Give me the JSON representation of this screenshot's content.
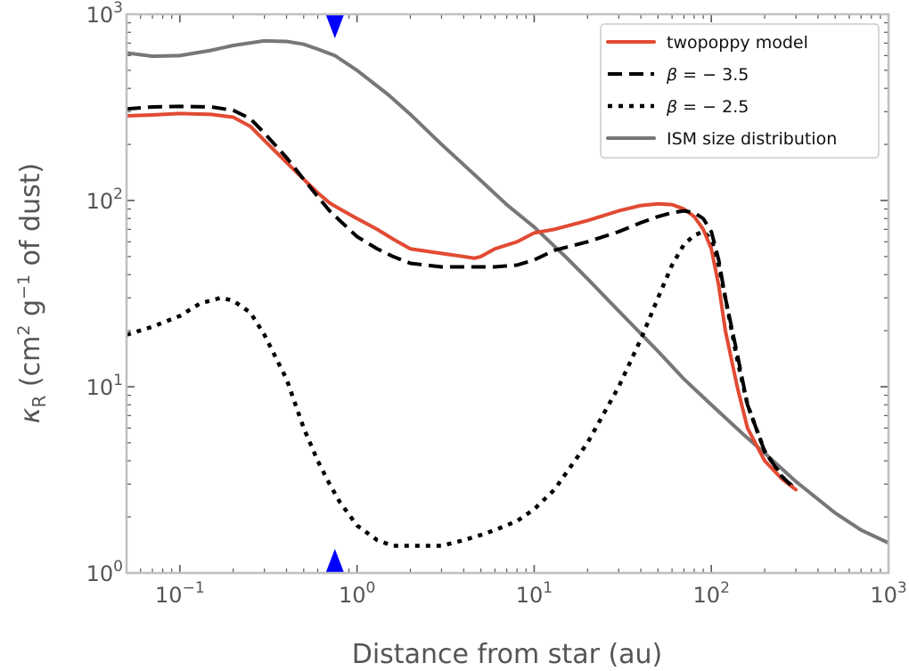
{
  "chart_data": {
    "type": "line",
    "title": "",
    "xlabel": "Distance from star (au)",
    "ylabel": "κR (cm² g⁻¹ of dust)",
    "xscale": "log",
    "yscale": "log",
    "xlim": [
      0.05,
      1000
    ],
    "ylim": [
      1,
      1000
    ],
    "xticks": [
      {
        "value": 0.1,
        "base": "10",
        "exp": "−1"
      },
      {
        "value": 1,
        "base": "10",
        "exp": "0"
      },
      {
        "value": 10,
        "base": "10",
        "exp": "1"
      },
      {
        "value": 100,
        "base": "10",
        "exp": "2"
      },
      {
        "value": 1000,
        "base": "10",
        "exp": "3"
      }
    ],
    "yticks": [
      {
        "value": 1,
        "base": "10",
        "exp": "0"
      },
      {
        "value": 10,
        "base": "10",
        "exp": "1"
      },
      {
        "value": 100,
        "base": "10",
        "exp": "2"
      },
      {
        "value": 1000,
        "base": "10",
        "exp": "3"
      }
    ],
    "ylabel_parts": {
      "kappa": "κ",
      "sub": "R",
      "pre": " (cm",
      "sup1": "2",
      "mid": " g",
      "sup2": "−1",
      "post": " of dust)"
    },
    "legend_position": "top-right",
    "markers": [
      {
        "name": "top-marker",
        "x": 0.75,
        "edge": "top",
        "shape": "triangle-down",
        "color": "#0000ff"
      },
      {
        "name": "bottom-marker",
        "x": 0.75,
        "edge": "bottom",
        "shape": "triangle-up",
        "color": "#0000ff"
      }
    ],
    "series": [
      {
        "name": "twopoppy model",
        "legend_label": "twopoppy model",
        "color": "#e24a33",
        "style": "solid",
        "x": [
          0.05,
          0.07,
          0.1,
          0.15,
          0.2,
          0.25,
          0.3,
          0.4,
          0.5,
          0.6,
          0.7,
          0.8,
          1.0,
          1.3,
          1.6,
          2.0,
          3.0,
          4.0,
          4.6,
          5.0,
          6.0,
          8.0,
          10,
          13,
          20,
          30,
          40,
          50,
          60,
          70,
          80,
          90,
          100,
          110,
          120,
          140,
          160,
          200,
          250,
          300
        ],
        "values": [
          285,
          288,
          293,
          290,
          280,
          250,
          210,
          160,
          130,
          110,
          97,
          90,
          80,
          70,
          62,
          55,
          52,
          50,
          49,
          50,
          55,
          60,
          67,
          70,
          78,
          88,
          94,
          96,
          95,
          90,
          82,
          70,
          55,
          35,
          20,
          10,
          6.0,
          4.0,
          3.2,
          2.8
        ]
      },
      {
        "name": "beta -3.5",
        "legend_label": "= − 3.5",
        "color": "#000000",
        "style": "dashed",
        "x": [
          0.05,
          0.07,
          0.1,
          0.15,
          0.2,
          0.25,
          0.3,
          0.4,
          0.5,
          0.6,
          0.7,
          0.8,
          1.0,
          1.3,
          1.6,
          2.0,
          3.0,
          4.0,
          5.0,
          6.0,
          8.0,
          10,
          13,
          20,
          30,
          40,
          50,
          60,
          70,
          80,
          90,
          100,
          110,
          120,
          140,
          160,
          200,
          250,
          300
        ],
        "values": [
          310,
          318,
          320,
          318,
          305,
          275,
          230,
          170,
          130,
          105,
          88,
          78,
          64,
          55,
          50,
          46,
          44,
          44,
          44,
          44,
          45,
          48,
          54,
          60,
          68,
          76,
          82,
          86,
          88,
          86,
          80,
          68,
          48,
          30,
          15,
          8.0,
          4.5,
          3.3,
          2.8
        ]
      },
      {
        "name": "beta -2.5",
        "legend_label": "= − 2.5",
        "color": "#000000",
        "style": "dotted",
        "x": [
          0.05,
          0.07,
          0.1,
          0.13,
          0.17,
          0.2,
          0.25,
          0.3,
          0.4,
          0.5,
          0.6,
          0.7,
          0.8,
          1.0,
          1.3,
          1.6,
          2.0,
          3.0,
          4.0,
          5.0,
          6.0,
          8.0,
          10,
          13,
          20,
          30,
          40,
          50,
          60,
          70,
          80,
          90,
          100,
          110,
          120,
          140,
          160,
          200,
          250,
          300
        ],
        "values": [
          19,
          21,
          24,
          28,
          30,
          29,
          25,
          19,
          11,
          6.0,
          4.0,
          3.0,
          2.4,
          1.8,
          1.5,
          1.4,
          1.4,
          1.4,
          1.5,
          1.6,
          1.7,
          1.9,
          2.2,
          2.8,
          5.0,
          10,
          18,
          30,
          45,
          58,
          65,
          68,
          62,
          45,
          30,
          14,
          8.0,
          4.5,
          3.3,
          2.8
        ]
      },
      {
        "name": "ISM size distribution",
        "legend_label": "ISM size distribution",
        "color": "#777777",
        "style": "solid",
        "x": [
          0.05,
          0.07,
          0.1,
          0.15,
          0.2,
          0.3,
          0.4,
          0.5,
          0.6,
          0.75,
          1.0,
          1.5,
          2,
          3,
          5,
          7,
          10,
          15,
          20,
          30,
          50,
          70,
          100,
          150,
          200,
          300,
          500,
          700,
          1000
        ],
        "values": [
          620,
          595,
          600,
          640,
          680,
          720,
          715,
          690,
          650,
          600,
          500,
          370,
          290,
          200,
          128,
          95,
          72,
          50,
          38,
          25.5,
          15.5,
          11,
          8.0,
          5.6,
          4.4,
          3.1,
          2.1,
          1.7,
          1.45
        ]
      }
    ]
  }
}
